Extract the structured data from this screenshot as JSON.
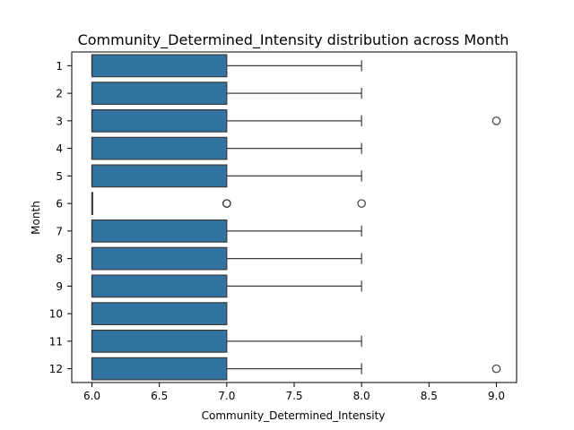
{
  "chart_data": {
    "type": "boxplot",
    "orientation": "horizontal",
    "title": "Community_Determined_Intensity distribution across Month",
    "xlabel": "Community_Determined_Intensity",
    "ylabel": "Month",
    "xlim": [
      5.85,
      9.15
    ],
    "xticks": [
      6.0,
      6.5,
      7.0,
      7.5,
      8.0,
      8.5,
      9.0
    ],
    "xtick_labels": [
      "6.0",
      "6.5",
      "7.0",
      "7.5",
      "8.0",
      "8.5",
      "9.0"
    ],
    "categories": [
      "1",
      "2",
      "3",
      "4",
      "5",
      "6",
      "7",
      "8",
      "9",
      "10",
      "11",
      "12"
    ],
    "boxes": [
      {
        "category": "1",
        "whisker_low": 6,
        "q1": 6,
        "median": 6,
        "q3": 7,
        "whisker_high": 8,
        "outliers": []
      },
      {
        "category": "2",
        "whisker_low": 6,
        "q1": 6,
        "median": 6,
        "q3": 7,
        "whisker_high": 8,
        "outliers": []
      },
      {
        "category": "3",
        "whisker_low": 6,
        "q1": 6,
        "median": 6,
        "q3": 7,
        "whisker_high": 8,
        "outliers": [
          9
        ]
      },
      {
        "category": "4",
        "whisker_low": 6,
        "q1": 6,
        "median": 6,
        "q3": 7,
        "whisker_high": 8,
        "outliers": []
      },
      {
        "category": "5",
        "whisker_low": 6,
        "q1": 6,
        "median": 6,
        "q3": 7,
        "whisker_high": 8,
        "outliers": []
      },
      {
        "category": "6",
        "whisker_low": 6,
        "q1": 6,
        "median": 6,
        "q3": 6,
        "whisker_high": 6,
        "outliers": [
          7,
          7,
          7,
          8
        ]
      },
      {
        "category": "7",
        "whisker_low": 6,
        "q1": 6,
        "median": 6,
        "q3": 7,
        "whisker_high": 8,
        "outliers": []
      },
      {
        "category": "8",
        "whisker_low": 6,
        "q1": 6,
        "median": 6,
        "q3": 7,
        "whisker_high": 8,
        "outliers": []
      },
      {
        "category": "9",
        "whisker_low": 6,
        "q1": 6,
        "median": 6,
        "q3": 7,
        "whisker_high": 8,
        "outliers": []
      },
      {
        "category": "10",
        "whisker_low": 6,
        "q1": 6,
        "median": 6,
        "q3": 7,
        "whisker_high": 7,
        "outliers": []
      },
      {
        "category": "11",
        "whisker_low": 6,
        "q1": 6,
        "median": 6,
        "q3": 7,
        "whisker_high": 8,
        "outliers": []
      },
      {
        "category": "12",
        "whisker_low": 6,
        "q1": 6,
        "median": 6,
        "q3": 7,
        "whisker_high": 8,
        "outliers": [
          9
        ]
      }
    ],
    "box_color": "#3274a1",
    "line_color": "#3d3d3d",
    "grid": false,
    "legend": "none"
  }
}
